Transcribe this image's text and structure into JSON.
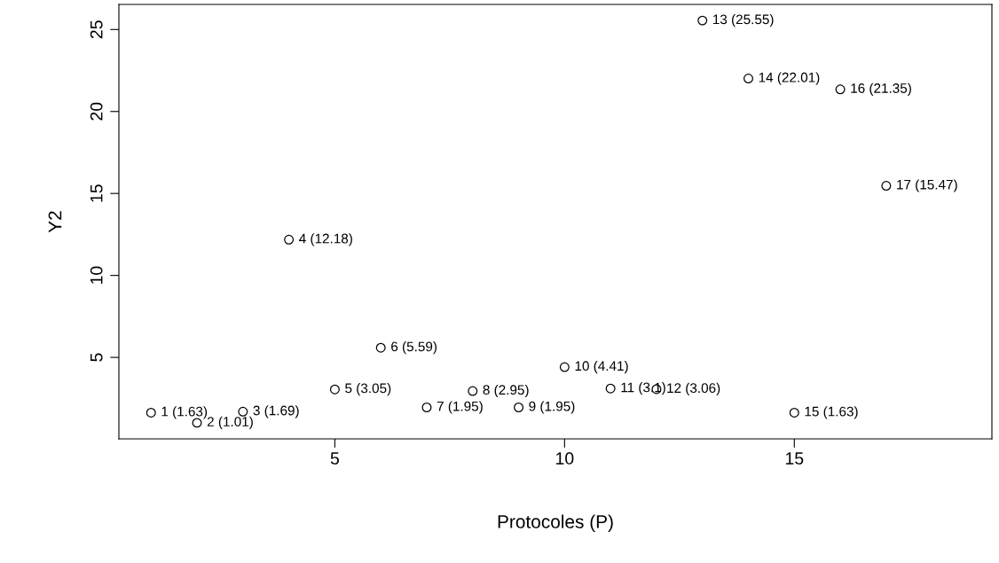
{
  "chart_data": {
    "type": "scatter",
    "xlabel": "Protocoles (P)",
    "ylabel": "Y2",
    "x": [
      1,
      2,
      3,
      4,
      5,
      6,
      7,
      8,
      9,
      10,
      11,
      12,
      13,
      14,
      15,
      16,
      17
    ],
    "values": [
      1.63,
      1.01,
      1.69,
      12.18,
      3.05,
      5.59,
      1.95,
      2.95,
      1.95,
      4.41,
      3.1,
      3.06,
      25.55,
      22.01,
      1.63,
      21.35,
      15.47
    ],
    "value_labels": [
      "1 (1.63)",
      "2 (1.01)",
      "3 (1.69)",
      "4 (12.18)",
      "5 (3.05)",
      "6 (5.59)",
      "7 (1.95)",
      "8 (2.95)",
      "9 (1.95)",
      "10 (4.41)",
      "11 (3.1)",
      "12 (3.06)",
      "13 (25.55)",
      "14 (22.01)",
      "15 (1.63)",
      "16 (21.35)",
      "17 (15.47)"
    ],
    "color": "#000000",
    "marker": "circle",
    "xlim": [
      0.3,
      19.3
    ],
    "ylim": [
      0.03,
      26.53
    ],
    "xticks": [
      5,
      10,
      15
    ],
    "yticks": [
      5,
      10,
      15,
      20,
      25
    ],
    "grid": false,
    "legend": false
  }
}
